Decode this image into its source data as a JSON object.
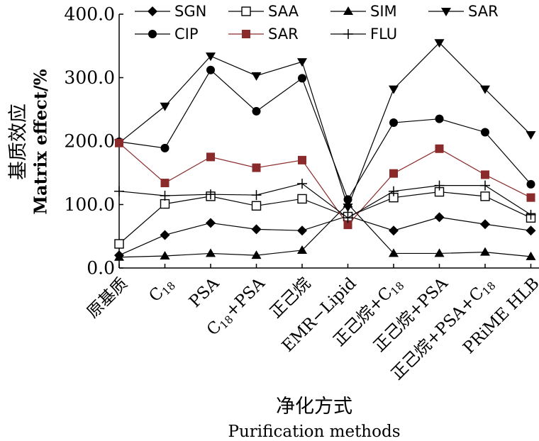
{
  "chart_data": {
    "type": "line",
    "ylabel_cn": "基质效应",
    "ylabel_en": "Matrix effect/%",
    "xlabel_cn": "净化方式",
    "xlabel_en": "Purification methods",
    "ylim": [
      0,
      400
    ],
    "yticks": [
      "0.0",
      "100.0",
      "200.0",
      "300.0",
      "400.0"
    ],
    "categories": [
      {
        "main": "原基质"
      },
      {
        "main": "C",
        "sub": "18"
      },
      {
        "main": "PSA"
      },
      {
        "main": "C",
        "sub": "18",
        "rest": "+PSA"
      },
      {
        "main": "正己烷"
      },
      {
        "main": "EMR−Lipid"
      },
      {
        "main": "正己烷+C",
        "sub": "18"
      },
      {
        "main": "正己烷+PSA"
      },
      {
        "main": "正己烷+PSA+C",
        "sub": "18"
      },
      {
        "main": "PRiME HLB"
      }
    ],
    "series": [
      {
        "name": "SGN",
        "marker": "diamond",
        "color": "#000000",
        "values": [
          20,
          52,
          71,
          61,
          59,
          82,
          59,
          80,
          69,
          59
        ]
      },
      {
        "name": "SAA",
        "marker": "square-open",
        "color": "#000000",
        "values": [
          38,
          101,
          113,
          98,
          109,
          81,
          111,
          120,
          113,
          79
        ]
      },
      {
        "name": "SIM",
        "marker": "triangle-up",
        "color": "#000000",
        "values": [
          17,
          19,
          23,
          20,
          28,
          101,
          23,
          23,
          25,
          18
        ]
      },
      {
        "name": "SAR",
        "marker": "triangle-down",
        "color": "#000000",
        "values": [
          197,
          255,
          334,
          303,
          325,
          96,
          282,
          355,
          282,
          210
        ]
      },
      {
        "name": "CIP",
        "marker": "circle",
        "color": "#000000",
        "values": [
          199,
          189,
          312,
          247,
          299,
          108,
          229,
          235,
          214,
          132
        ]
      },
      {
        "name": "SAR",
        "marker": "square-filled",
        "color": "#8b2a2a",
        "values": [
          197,
          134,
          175,
          158,
          170,
          68,
          149,
          188,
          147,
          111
        ]
      },
      {
        "name": "FLU",
        "marker": "plus",
        "color": "#000000",
        "values": [
          121,
          114,
          116,
          115,
          133,
          79,
          121,
          130,
          130,
          84
        ]
      }
    ]
  }
}
